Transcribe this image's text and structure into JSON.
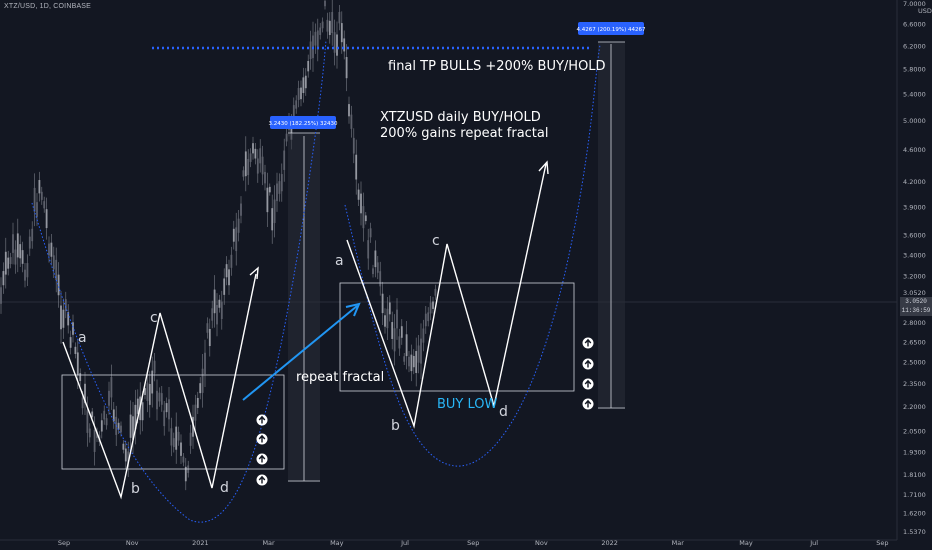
{
  "header": {
    "symbol_line": "XTZ/USD, 1D, COINBASE"
  },
  "price_tag": {
    "price": "3.0520",
    "countdown": "11:36:59"
  },
  "chart_data": {
    "type": "candlestick",
    "title": "XTZ/USD, 1D, COINBASE",
    "currency": "USD",
    "scale": "log",
    "grid": false,
    "y_ticks": [
      "7.0000",
      "6.6000",
      "6.2000",
      "5.8000",
      "5.4000",
      "5.0000",
      "4.6000",
      "4.2000",
      "3.9000",
      "3.6000",
      "3.4000",
      "3.2000",
      "3.0520",
      "2.8000",
      "2.6500",
      "2.5000",
      "2.3500",
      "2.2000",
      "2.0500",
      "1.9300",
      "1.8100",
      "1.7100",
      "1.6200",
      "1.5370"
    ],
    "x_ticks": [
      "Sep",
      "Nov",
      "2021",
      "Mar",
      "May",
      "Jul",
      "Sep",
      "Nov",
      "2022",
      "Mar",
      "May",
      "Jul",
      "Sep"
    ],
    "last_price": 3.052,
    "annotations": {
      "title_text": "final TP BULLS +200% BUY/HOLD",
      "main_line1": "XTZUSD daily BUY/HOLD",
      "main_line2": "200% gains repeat fractal",
      "repeat_fractal": "repeat fractal",
      "buy_low": "BUY LOW",
      "measure_1": "3.2430 (182.25%) 32430",
      "measure_2": "4.4267 (200.19%) 44267",
      "wave_labels_left": [
        "a",
        "b",
        "c",
        "d"
      ],
      "wave_labels_right": [
        "a",
        "b",
        "c",
        "d"
      ]
    }
  }
}
